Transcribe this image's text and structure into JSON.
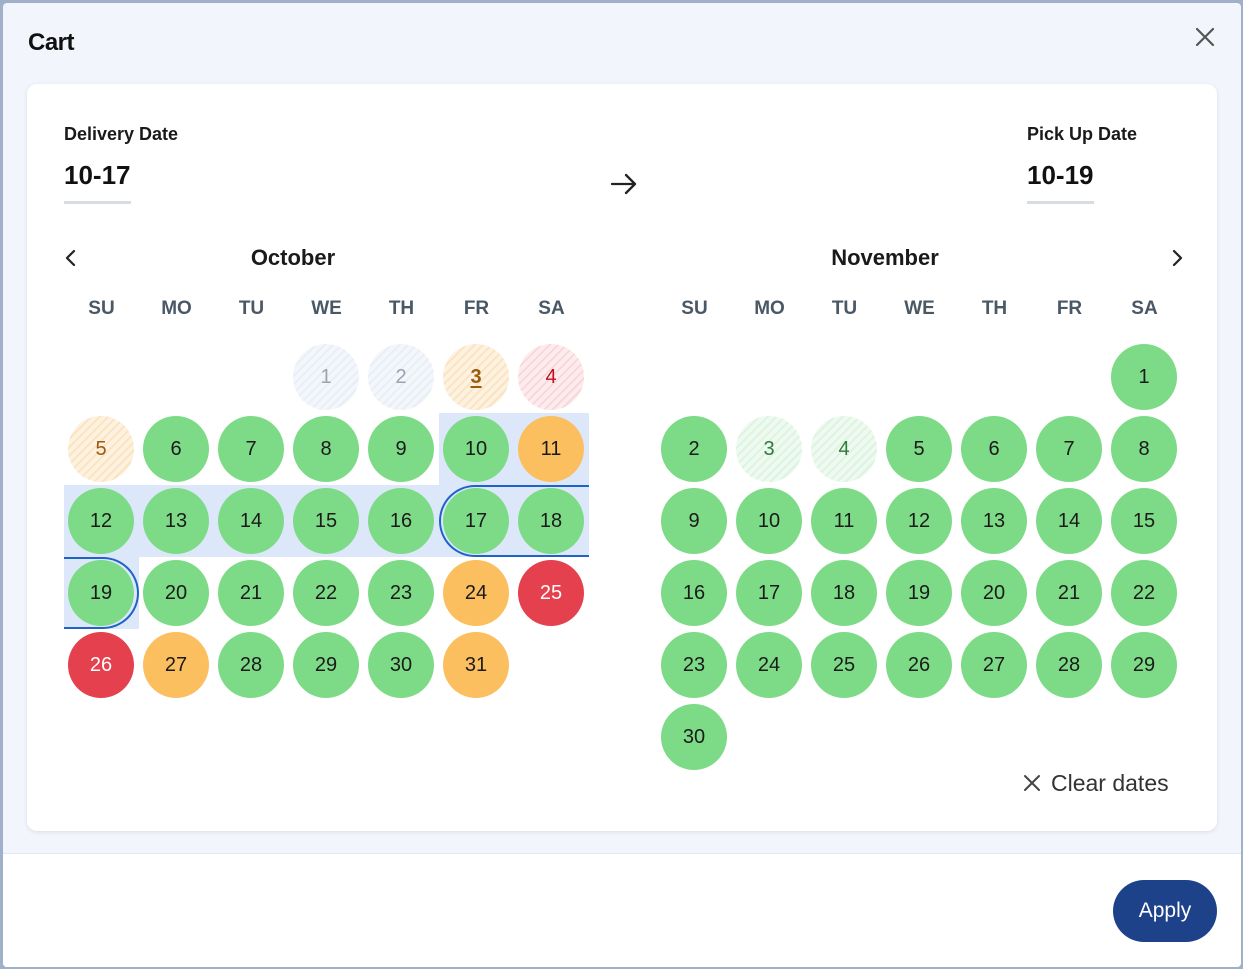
{
  "dialog": {
    "title": "Cart"
  },
  "delivery": {
    "label": "Delivery Date",
    "value": "10-17"
  },
  "pickup": {
    "label": "Pick Up Date",
    "value": "10-19"
  },
  "weekdays": [
    "SU",
    "MO",
    "TU",
    "WE",
    "TH",
    "FR",
    "SA"
  ],
  "calendars": [
    {
      "month": "October",
      "start_weekday": 3,
      "days": [
        {
          "d": "1",
          "s": "dis-gray"
        },
        {
          "d": "2",
          "s": "dis-gray"
        },
        {
          "d": "3",
          "s": "dis-orange",
          "today": true
        },
        {
          "d": "4",
          "s": "dis-red"
        },
        {
          "d": "5",
          "s": "dis-orange"
        },
        {
          "d": "6",
          "s": "green"
        },
        {
          "d": "7",
          "s": "green"
        },
        {
          "d": "8",
          "s": "green"
        },
        {
          "d": "9",
          "s": "green"
        },
        {
          "d": "10",
          "s": "green"
        },
        {
          "d": "11",
          "s": "orange"
        },
        {
          "d": "12",
          "s": "green"
        },
        {
          "d": "13",
          "s": "green"
        },
        {
          "d": "14",
          "s": "green"
        },
        {
          "d": "15",
          "s": "green"
        },
        {
          "d": "16",
          "s": "green"
        },
        {
          "d": "17",
          "s": "green"
        },
        {
          "d": "18",
          "s": "green"
        },
        {
          "d": "19",
          "s": "green"
        },
        {
          "d": "20",
          "s": "green"
        },
        {
          "d": "21",
          "s": "green"
        },
        {
          "d": "22",
          "s": "green"
        },
        {
          "d": "23",
          "s": "green"
        },
        {
          "d": "24",
          "s": "orange"
        },
        {
          "d": "25",
          "s": "red"
        },
        {
          "d": "26",
          "s": "red"
        },
        {
          "d": "27",
          "s": "orange"
        },
        {
          "d": "28",
          "s": "green"
        },
        {
          "d": "29",
          "s": "green"
        },
        {
          "d": "30",
          "s": "green"
        },
        {
          "d": "31",
          "s": "orange"
        }
      ]
    },
    {
      "month": "November",
      "start_weekday": 6,
      "days": [
        {
          "d": "1",
          "s": "green"
        },
        {
          "d": "2",
          "s": "green"
        },
        {
          "d": "3",
          "s": "dis-green"
        },
        {
          "d": "4",
          "s": "dis-green"
        },
        {
          "d": "5",
          "s": "green"
        },
        {
          "d": "6",
          "s": "green"
        },
        {
          "d": "7",
          "s": "green"
        },
        {
          "d": "8",
          "s": "green"
        },
        {
          "d": "9",
          "s": "green"
        },
        {
          "d": "10",
          "s": "green"
        },
        {
          "d": "11",
          "s": "green"
        },
        {
          "d": "12",
          "s": "green"
        },
        {
          "d": "13",
          "s": "green"
        },
        {
          "d": "14",
          "s": "green"
        },
        {
          "d": "15",
          "s": "green"
        },
        {
          "d": "16",
          "s": "green"
        },
        {
          "d": "17",
          "s": "green"
        },
        {
          "d": "18",
          "s": "green"
        },
        {
          "d": "19",
          "s": "green"
        },
        {
          "d": "20",
          "s": "green"
        },
        {
          "d": "21",
          "s": "green"
        },
        {
          "d": "22",
          "s": "green"
        },
        {
          "d": "23",
          "s": "green"
        },
        {
          "d": "24",
          "s": "green"
        },
        {
          "d": "25",
          "s": "green"
        },
        {
          "d": "26",
          "s": "green"
        },
        {
          "d": "27",
          "s": "green"
        },
        {
          "d": "28",
          "s": "green"
        },
        {
          "d": "29",
          "s": "green"
        },
        {
          "d": "30",
          "s": "green"
        }
      ]
    }
  ],
  "clear_dates_label": "Clear dates",
  "apply_label": "Apply",
  "icons": {
    "close": "close-icon",
    "arrow": "arrow-right-icon",
    "prev": "chevron-left-icon",
    "next": "chevron-right-icon",
    "clear": "x-icon"
  },
  "colors": {
    "available": "#7ddb87",
    "limited": "#fbbf5f",
    "unavailable": "#e4404e",
    "selection": "#1f63c8",
    "range": "#dce8fa",
    "apply": "#1d428a"
  }
}
